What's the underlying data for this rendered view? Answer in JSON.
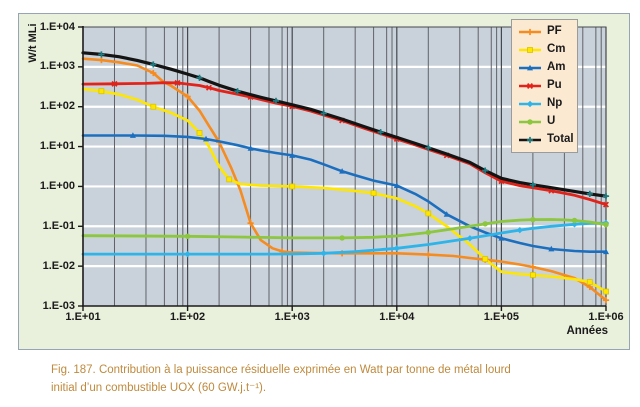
{
  "figure": {
    "caption": "Fig. 187. Contribution à la puissance résiduelle exprimée en Watt par tonne de métal lourd initial d’un combustible UOX (60 GW.j.t⁻¹)."
  },
  "chart_data": {
    "type": "line",
    "x_scale": "log",
    "y_scale": "log",
    "x_label": "Années",
    "y_label": "W/t MLi",
    "x_range": [
      10,
      1000000
    ],
    "y_range": [
      0.001,
      10000
    ],
    "x_ticks": [
      10,
      100,
      1000,
      10000,
      100000,
      1000000
    ],
    "x_tick_labels": [
      "1.E+01",
      "1.E+02",
      "1.E+03",
      "1.E+04",
      "1.E+05",
      "1.E+06"
    ],
    "y_ticks": [
      10000,
      1000,
      100,
      10,
      1,
      0.1,
      0.01,
      0.001
    ],
    "y_tick_labels": [
      "1.E+04",
      "1.E+03",
      "1.E+02",
      "1.E+01",
      "1.E+00",
      "1.E-01",
      "1.E-02",
      "1.E-03"
    ],
    "grid": {
      "horizontal": "major-decades-white",
      "vertical_minor_multiples": [
        2,
        4,
        6,
        8,
        9
      ]
    },
    "legend_position": "top-right",
    "colors": {
      "panel_bg": "#E9F0DC",
      "plot_bg": "#C9D2DA",
      "grid_major": "#FFFFFF",
      "grid_minor": "#5F6368",
      "axis": "#1A1A1A",
      "legend_bg": "#FCE9D2",
      "legend_border": "#9B9B9B",
      "panel_border": "#96A4B3",
      "caption_text": "#BF8A3D"
    },
    "series": [
      {
        "name": "PF",
        "color": "#F68B1F",
        "marker": "plus",
        "width": 2.6,
        "points": [
          [
            10,
            1600
          ],
          [
            15,
            1480
          ],
          [
            22,
            1300
          ],
          [
            33,
            1080
          ],
          [
            47,
            700
          ],
          [
            58,
            430
          ],
          [
            70,
            330
          ],
          [
            100,
            180
          ],
          [
            130,
            80
          ],
          [
            160,
            33
          ],
          [
            200,
            13
          ],
          [
            260,
            3
          ],
          [
            320,
            0.8
          ],
          [
            400,
            0.12
          ],
          [
            500,
            0.045
          ],
          [
            650,
            0.028
          ],
          [
            800,
            0.0235
          ],
          [
            1000,
            0.022
          ],
          [
            1500,
            0.0215
          ],
          [
            3000,
            0.021
          ],
          [
            6000,
            0.021
          ],
          [
            10000,
            0.021
          ],
          [
            20000,
            0.0195
          ],
          [
            35000,
            0.018
          ],
          [
            50000,
            0.016
          ],
          [
            70000,
            0.0145
          ],
          [
            100000,
            0.013
          ],
          [
            150000,
            0.011
          ],
          [
            200000,
            0.0095
          ],
          [
            300000,
            0.0075
          ],
          [
            500000,
            0.005
          ],
          [
            700000,
            0.003
          ],
          [
            1000000,
            0.0014
          ]
        ]
      },
      {
        "name": "Cm",
        "color": "#FFE600",
        "marker": "square",
        "width": 2.6,
        "points": [
          [
            10,
            280
          ],
          [
            15,
            245
          ],
          [
            22,
            205
          ],
          [
            33,
            150
          ],
          [
            47,
            100
          ],
          [
            70,
            70
          ],
          [
            100,
            45
          ],
          [
            130,
            22
          ],
          [
            160,
            10
          ],
          [
            200,
            3.2
          ],
          [
            250,
            1.5
          ],
          [
            320,
            1.15
          ],
          [
            500,
            1.05
          ],
          [
            1000,
            1.0
          ],
          [
            2000,
            0.92
          ],
          [
            3500,
            0.8
          ],
          [
            6000,
            0.68
          ],
          [
            10000,
            0.5
          ],
          [
            15000,
            0.32
          ],
          [
            20000,
            0.21
          ],
          [
            30000,
            0.1
          ],
          [
            50000,
            0.035
          ],
          [
            70000,
            0.015
          ],
          [
            100000,
            0.0072
          ],
          [
            150000,
            0.0063
          ],
          [
            200000,
            0.006
          ],
          [
            300000,
            0.0055
          ],
          [
            500000,
            0.0047
          ],
          [
            700000,
            0.004
          ],
          [
            1000000,
            0.0023
          ]
        ]
      },
      {
        "name": "Am",
        "color": "#1C6FBF",
        "marker": "triangle",
        "width": 2.6,
        "points": [
          [
            10,
            19
          ],
          [
            30,
            19
          ],
          [
            60,
            18.6
          ],
          [
            100,
            17.5
          ],
          [
            150,
            15.5
          ],
          [
            200,
            13.5
          ],
          [
            300,
            10.8
          ],
          [
            400,
            9
          ],
          [
            500,
            8
          ],
          [
            700,
            6.9
          ],
          [
            1000,
            6
          ],
          [
            1500,
            4.7
          ],
          [
            2000,
            3.6
          ],
          [
            3000,
            2.4
          ],
          [
            4000,
            1.9
          ],
          [
            6000,
            1.4
          ],
          [
            10000,
            1.05
          ],
          [
            15000,
            0.65
          ],
          [
            20000,
            0.42
          ],
          [
            30000,
            0.2
          ],
          [
            50000,
            0.1
          ],
          [
            70000,
            0.07
          ],
          [
            100000,
            0.05
          ],
          [
            150000,
            0.038
          ],
          [
            200000,
            0.032
          ],
          [
            300000,
            0.027
          ],
          [
            500000,
            0.024
          ],
          [
            700000,
            0.023
          ],
          [
            1000000,
            0.023
          ]
        ]
      },
      {
        "name": "Pu",
        "color": "#E2231A",
        "marker": "cross",
        "width": 2.8,
        "points": [
          [
            10,
            370
          ],
          [
            20,
            375
          ],
          [
            40,
            385
          ],
          [
            60,
            400
          ],
          [
            80,
            395
          ],
          [
            100,
            370
          ],
          [
            130,
            340
          ],
          [
            160,
            300
          ],
          [
            200,
            255
          ],
          [
            300,
            205
          ],
          [
            400,
            175
          ],
          [
            500,
            152
          ],
          [
            700,
            123
          ],
          [
            1000,
            102
          ],
          [
            1500,
            78
          ],
          [
            2000,
            62
          ],
          [
            3000,
            45
          ],
          [
            5000,
            28
          ],
          [
            7000,
            21
          ],
          [
            10000,
            15.5
          ],
          [
            15000,
            11
          ],
          [
            20000,
            8.5
          ],
          [
            30000,
            6
          ],
          [
            50000,
            3.7
          ],
          [
            70000,
            2.2
          ],
          [
            100000,
            1.35
          ],
          [
            150000,
            1.05
          ],
          [
            200000,
            0.93
          ],
          [
            300000,
            0.78
          ],
          [
            500000,
            0.6
          ],
          [
            700000,
            0.47
          ],
          [
            1000000,
            0.35
          ]
        ]
      },
      {
        "name": "Np",
        "color": "#2FB4E9",
        "marker": "diamond",
        "width": 2.8,
        "points": [
          [
            10,
            0.02
          ],
          [
            100,
            0.02
          ],
          [
            500,
            0.02
          ],
          [
            1000,
            0.0202
          ],
          [
            2000,
            0.021
          ],
          [
            4000,
            0.023
          ],
          [
            7000,
            0.026
          ],
          [
            10000,
            0.028
          ],
          [
            20000,
            0.035
          ],
          [
            30000,
            0.041
          ],
          [
            50000,
            0.05
          ],
          [
            70000,
            0.058
          ],
          [
            100000,
            0.068
          ],
          [
            150000,
            0.08
          ],
          [
            200000,
            0.089
          ],
          [
            300000,
            0.1
          ],
          [
            500000,
            0.112
          ],
          [
            700000,
            0.118
          ],
          [
            1000000,
            0.12
          ]
        ]
      },
      {
        "name": "U",
        "color": "#8DC63F",
        "marker": "circle",
        "width": 2.8,
        "points": [
          [
            10,
            0.058
          ],
          [
            100,
            0.056
          ],
          [
            300,
            0.054
          ],
          [
            1000,
            0.051
          ],
          [
            3000,
            0.051
          ],
          [
            6000,
            0.053
          ],
          [
            10000,
            0.057
          ],
          [
            20000,
            0.07
          ],
          [
            30000,
            0.082
          ],
          [
            50000,
            0.1
          ],
          [
            70000,
            0.115
          ],
          [
            100000,
            0.132
          ],
          [
            150000,
            0.143
          ],
          [
            200000,
            0.147
          ],
          [
            300000,
            0.148
          ],
          [
            400000,
            0.145
          ],
          [
            500000,
            0.14
          ],
          [
            700000,
            0.128
          ],
          [
            1000000,
            0.11
          ]
        ]
      },
      {
        "name": "Total",
        "color": "#141414",
        "marker": "plus",
        "marker_color": "#1B7E84",
        "width": 3.2,
        "points": [
          [
            10,
            2250
          ],
          [
            15,
            2050
          ],
          [
            22,
            1800
          ],
          [
            33,
            1450
          ],
          [
            47,
            1150
          ],
          [
            70,
            870
          ],
          [
            100,
            660
          ],
          [
            130,
            530
          ],
          [
            160,
            430
          ],
          [
            200,
            345
          ],
          [
            300,
            245
          ],
          [
            400,
            200
          ],
          [
            500,
            172
          ],
          [
            700,
            140
          ],
          [
            1000,
            112
          ],
          [
            1500,
            86
          ],
          [
            2000,
            68
          ],
          [
            3000,
            49
          ],
          [
            5000,
            31
          ],
          [
            7000,
            23
          ],
          [
            10000,
            17
          ],
          [
            15000,
            12
          ],
          [
            20000,
            9.3
          ],
          [
            30000,
            6.5
          ],
          [
            50000,
            4
          ],
          [
            70000,
            2.5
          ],
          [
            100000,
            1.6
          ],
          [
            150000,
            1.25
          ],
          [
            200000,
            1.1
          ],
          [
            300000,
            0.93
          ],
          [
            500000,
            0.75
          ],
          [
            700000,
            0.65
          ],
          [
            1000000,
            0.57
          ]
        ]
      }
    ]
  }
}
